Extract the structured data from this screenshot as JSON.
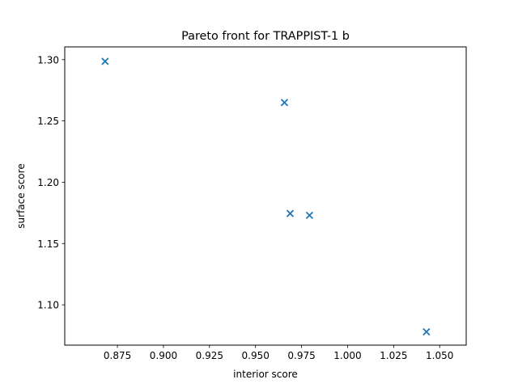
{
  "chart_data": {
    "type": "scatter",
    "title": "Pareto front for TRAPPIST-1 b",
    "xlabel": "interior score",
    "ylabel": "surface score",
    "xlim": [
      0.8464,
      1.0644
    ],
    "ylim": [
      1.0671,
      1.3104
    ],
    "x_ticks": [
      0.875,
      0.9,
      0.925,
      0.95,
      0.975,
      1.0,
      1.025,
      1.05
    ],
    "x_tick_labels": [
      "0.875",
      "0.900",
      "0.925",
      "0.950",
      "0.975",
      "1.000",
      "1.025",
      "1.050"
    ],
    "y_ticks": [
      1.1,
      1.15,
      1.2,
      1.25,
      1.3
    ],
    "y_tick_labels": [
      "1.10",
      "1.15",
      "1.20",
      "1.25",
      "1.30"
    ],
    "marker": "x",
    "marker_color": "#1f77b4",
    "grid": false,
    "x": [
      0.8683,
      0.9657,
      0.9688,
      0.9793,
      1.0428
    ],
    "y": [
      1.2986,
      1.265,
      1.1745,
      1.173,
      1.078
    ]
  }
}
